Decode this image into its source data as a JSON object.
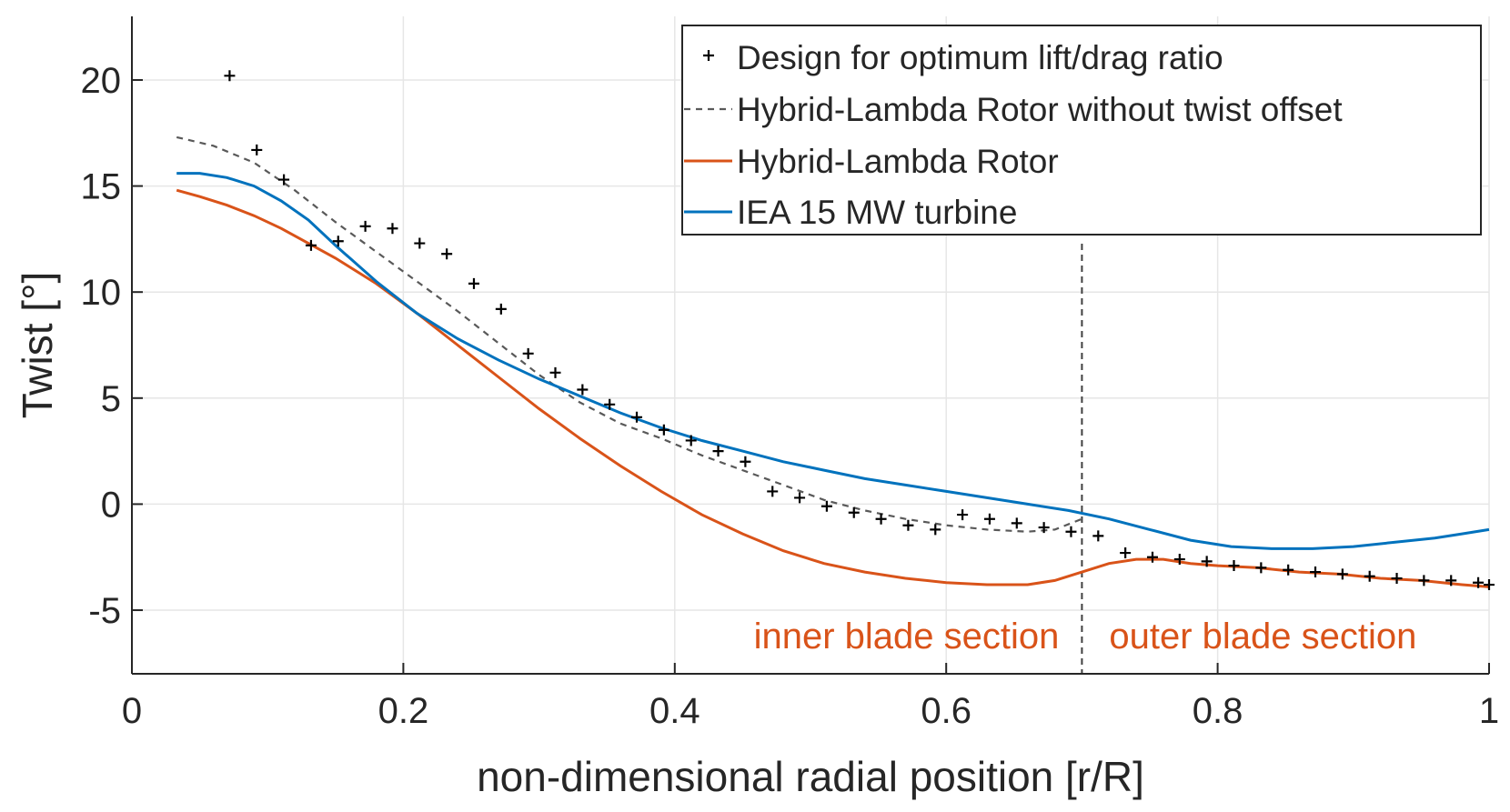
{
  "chart_data": {
    "type": "line",
    "xlabel": "non-dimensional radial position [r/R]",
    "ylabel": "Twist [°]",
    "xlim": [
      0,
      1
    ],
    "ylim": [
      -8,
      23
    ],
    "x_ticks": [
      0,
      0.2,
      0.4,
      0.6,
      0.8,
      1
    ],
    "x_tick_labels": [
      "0",
      "0.2",
      "0.4",
      "0.6",
      "0.8",
      "1"
    ],
    "y_ticks": [
      -5,
      0,
      5,
      10,
      15,
      20
    ],
    "y_tick_labels": [
      "-5",
      "0",
      "5",
      "10",
      "15",
      "20"
    ],
    "grid": true,
    "legend_position": "top-right",
    "colors": {
      "optimum": "#000000",
      "no_offset": "#595959",
      "hybrid": "#d95319",
      "iea": "#0072bd",
      "axis": "#262626",
      "grid": "#e6e6e6",
      "divider": "#404040"
    },
    "series": [
      {
        "name": "Design for optimum lift/drag ratio",
        "style": "markers",
        "x": [
          0.072,
          0.092,
          0.112,
          0.132,
          0.152,
          0.172,
          0.192,
          0.212,
          0.232,
          0.252,
          0.272,
          0.292,
          0.312,
          0.332,
          0.352,
          0.372,
          0.392,
          0.412,
          0.432,
          0.452,
          0.472,
          0.492,
          0.512,
          0.532,
          0.552,
          0.572,
          0.592,
          0.612,
          0.632,
          0.652,
          0.672,
          0.692,
          0.712,
          0.732,
          0.752,
          0.772,
          0.792,
          0.812,
          0.832,
          0.852,
          0.872,
          0.892,
          0.912,
          0.932,
          0.952,
          0.972,
          0.992,
          1.0
        ],
        "y": [
          20.2,
          16.7,
          15.3,
          12.2,
          12.4,
          13.1,
          13.0,
          12.3,
          11.8,
          10.4,
          9.2,
          7.1,
          6.2,
          5.4,
          4.7,
          4.1,
          3.5,
          3.0,
          2.5,
          2.0,
          0.6,
          0.3,
          -0.1,
          -0.4,
          -0.7,
          -1.0,
          -1.2,
          -0.5,
          -0.7,
          -0.9,
          -1.1,
          -1.3,
          -1.5,
          -2.3,
          -2.5,
          -2.6,
          -2.7,
          -2.9,
          -3.0,
          -3.1,
          -3.2,
          -3.3,
          -3.4,
          -3.5,
          -3.6,
          -3.6,
          -3.7,
          -3.8
        ]
      },
      {
        "name": "Hybrid-Lambda Rotor without twist offset",
        "style": "dashed",
        "x": [
          0.033,
          0.06,
          0.09,
          0.12,
          0.15,
          0.18,
          0.21,
          0.24,
          0.27,
          0.3,
          0.33,
          0.36,
          0.39,
          0.42,
          0.45,
          0.48,
          0.51,
          0.54,
          0.57,
          0.6,
          0.63,
          0.66,
          0.68,
          0.7
        ],
        "y": [
          17.3,
          16.9,
          16.1,
          14.8,
          13.3,
          11.9,
          10.5,
          9.1,
          7.6,
          6.1,
          4.8,
          3.8,
          3.1,
          2.3,
          1.6,
          0.9,
          0.2,
          -0.3,
          -0.7,
          -1.0,
          -1.2,
          -1.3,
          -1.2,
          -0.7
        ]
      },
      {
        "name": "Hybrid-Lambda Rotor",
        "style": "solid",
        "x": [
          0.033,
          0.05,
          0.07,
          0.09,
          0.11,
          0.13,
          0.15,
          0.18,
          0.21,
          0.24,
          0.27,
          0.3,
          0.33,
          0.36,
          0.39,
          0.42,
          0.45,
          0.48,
          0.51,
          0.54,
          0.57,
          0.6,
          0.63,
          0.66,
          0.68,
          0.7,
          0.72,
          0.74,
          0.76,
          0.78,
          0.8,
          0.83,
          0.86,
          0.89,
          0.92,
          0.95,
          0.98,
          1.0
        ],
        "y": [
          14.8,
          14.5,
          14.1,
          13.6,
          13.0,
          12.3,
          11.6,
          10.4,
          9.0,
          7.5,
          6.0,
          4.5,
          3.1,
          1.8,
          0.6,
          -0.5,
          -1.4,
          -2.2,
          -2.8,
          -3.2,
          -3.5,
          -3.7,
          -3.8,
          -3.8,
          -3.6,
          -3.2,
          -2.8,
          -2.6,
          -2.6,
          -2.8,
          -2.9,
          -3.0,
          -3.2,
          -3.3,
          -3.5,
          -3.6,
          -3.8,
          -3.9
        ]
      },
      {
        "name": "IEA 15 MW turbine",
        "style": "solid",
        "x": [
          0.033,
          0.05,
          0.07,
          0.09,
          0.11,
          0.13,
          0.15,
          0.18,
          0.21,
          0.24,
          0.27,
          0.3,
          0.33,
          0.36,
          0.39,
          0.42,
          0.45,
          0.48,
          0.51,
          0.54,
          0.57,
          0.6,
          0.63,
          0.66,
          0.69,
          0.72,
          0.75,
          0.78,
          0.81,
          0.84,
          0.87,
          0.9,
          0.93,
          0.96,
          0.98,
          1.0
        ],
        "y": [
          15.6,
          15.6,
          15.4,
          15.0,
          14.3,
          13.4,
          12.2,
          10.5,
          9.0,
          7.8,
          6.8,
          5.9,
          5.1,
          4.3,
          3.6,
          3.0,
          2.5,
          2.0,
          1.6,
          1.2,
          0.9,
          0.6,
          0.3,
          0.0,
          -0.3,
          -0.7,
          -1.2,
          -1.7,
          -2.0,
          -2.1,
          -2.1,
          -2.0,
          -1.8,
          -1.6,
          -1.4,
          -1.2
        ]
      }
    ],
    "divider": {
      "x": 0.7
    },
    "annotations": [
      {
        "text": "inner blade section",
        "x": 0.55,
        "y": -6.2
      },
      {
        "text": "outer blade section",
        "x": 0.85,
        "y": -6.2
      }
    ]
  }
}
